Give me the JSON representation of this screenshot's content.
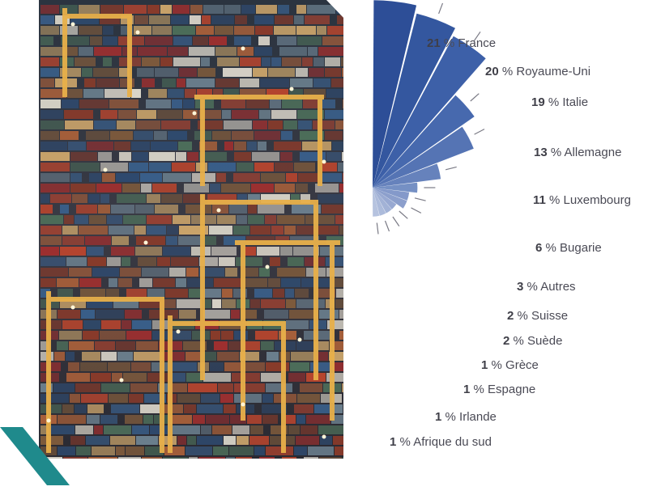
{
  "photo": {
    "subject": "container-port-at-night",
    "accent_color": "#1f8a8c"
  },
  "chart_data": {
    "type": "pie",
    "variant": "polar-area-half",
    "unit": "%",
    "categories": [
      "France",
      "Royaume-Uni",
      "Italie",
      "Allemagne",
      "Luxembourg",
      "Bugarie",
      "Autres",
      "Suisse",
      "Suède",
      "Grèce",
      "Espagne",
      "Irlande",
      "Afrique du sud"
    ],
    "values": [
      21,
      20,
      19,
      13,
      11,
      6,
      3,
      2,
      2,
      1,
      1,
      1,
      1
    ],
    "colors": [
      "#2d4e97",
      "#34579f",
      "#3d60a8",
      "#4769ae",
      "#5574b4",
      "#6682bc",
      "#7590c4",
      "#8499ca",
      "#8c9fcc",
      "#98a9d2",
      "#a2b2d6",
      "#acbbdb",
      "#b6c3df"
    ]
  }
}
